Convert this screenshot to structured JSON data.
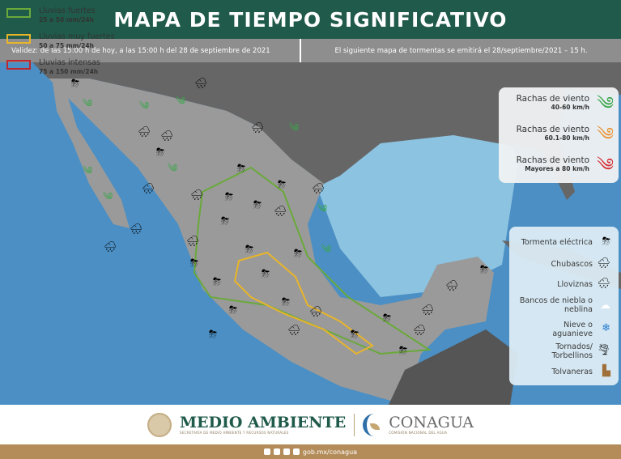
{
  "header": {
    "title": "MAPA DE TIEMPO SIGNIFICATIVO"
  },
  "info": {
    "validity": "Validez: de las 15:00 h de hoy, a las 15:00 h del 28 de septiembre de 2021",
    "next_map": "El siguiente mapa de tormentas se emitirá el 28/septiembre/2021 – 15 h."
  },
  "wind_legend": [
    {
      "label": "Rachas de viento",
      "range": "40-60 km/h",
      "color": "#3aa64a",
      "icon": "wind-icon"
    },
    {
      "label": "Rachas de viento",
      "range": "60.1-80 km/h",
      "color": "#e8953a",
      "icon": "wind-icon"
    },
    {
      "label": "Rachas de viento",
      "range": "Mayores a 80 km/h",
      "color": "#d6323a",
      "icon": "wind-icon"
    }
  ],
  "phenomena_legend": [
    {
      "label": "Tormenta eléctrica",
      "icon": "storm-cloud-icon"
    },
    {
      "label": "Chubascos",
      "icon": "shower-cloud-icon"
    },
    {
      "label": "Lloviznas",
      "icon": "drizzle-cloud-icon"
    },
    {
      "label": "Bancos de niebla o neblina",
      "icon": "fog-cloud-icon"
    },
    {
      "label": "Nieve o aguanieve",
      "icon": "snowflake-icon"
    },
    {
      "label": "Tornados/ Torbellinos",
      "icon": "tornado-icon"
    },
    {
      "label": "Tolvaneras",
      "icon": "dust-icon"
    }
  ],
  "rain_legend": [
    {
      "label": "Lluvias fuertes",
      "range": "25 a 50 mm/24h",
      "color": "#6aa93a"
    },
    {
      "label": "Lluvias muy fuertes",
      "range": "50 a 75 mm/24h",
      "color": "#e8b52a"
    },
    {
      "label": "Lluvias intensas",
      "range": "75 a 150 mm/24h",
      "color": "#c0262c"
    }
  ],
  "footer": {
    "semarnat": "MEDIO AMBIENTE",
    "semarnat_sub": "SECRETARÍA DE MEDIO AMBIENTE Y RECURSOS NATURALES",
    "conagua": "CONAGUA",
    "conagua_sub": "COMISIÓN NACIONAL DEL AGUA",
    "url": "gob.mx/conagua"
  },
  "colors": {
    "header": "#1f5a4a",
    "ocean": "#4b8fc4",
    "land": "#8a8a8a",
    "footer_bar": "#b48c5a"
  }
}
